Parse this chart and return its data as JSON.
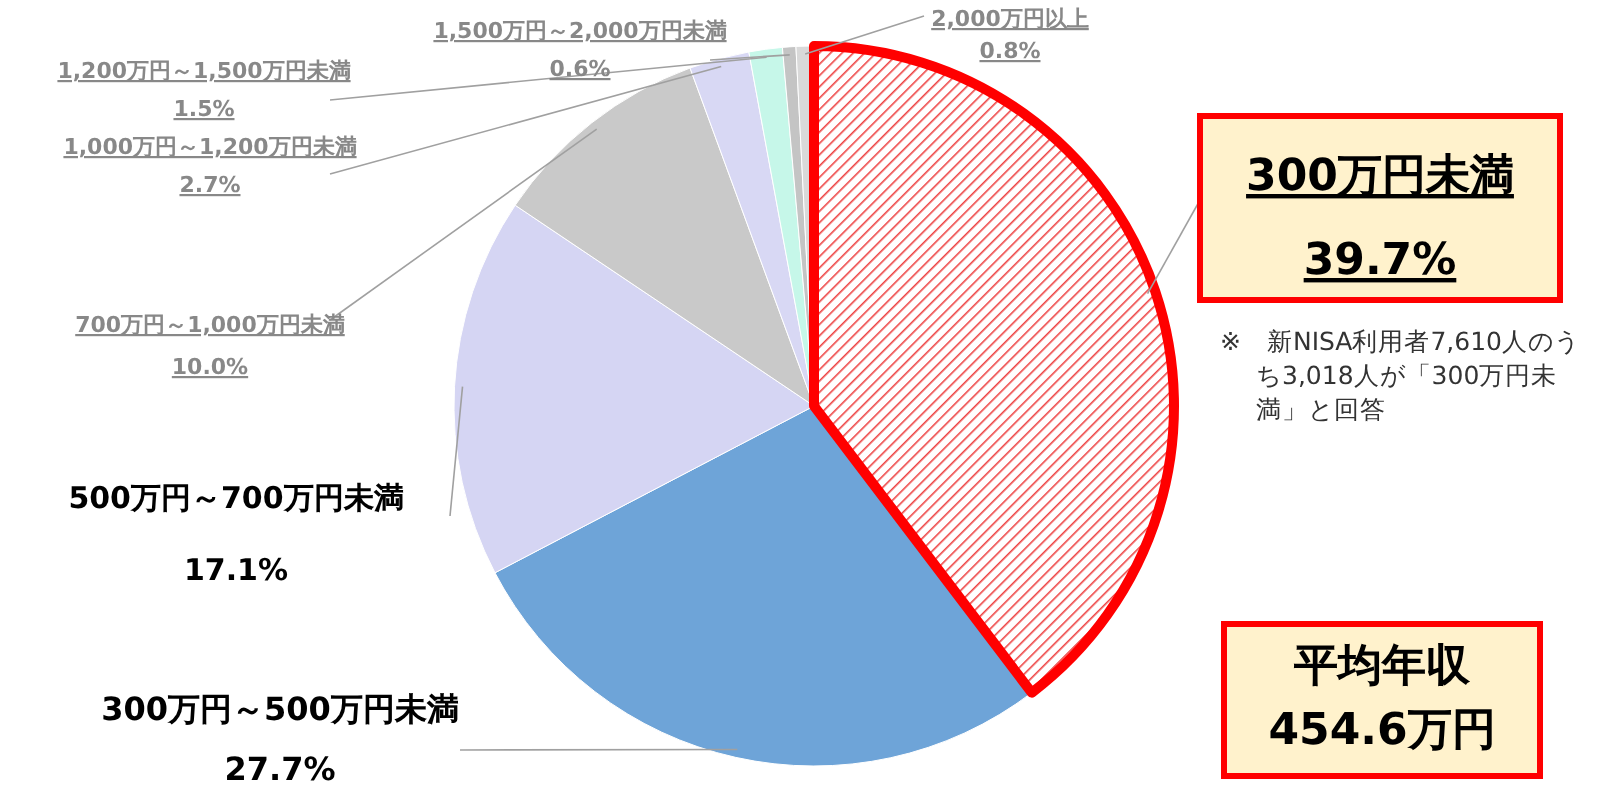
{
  "chart_data": {
    "type": "pie",
    "categories": [
      "300万円未満",
      "300万円～500万円未満",
      "500万円～700万円未満",
      "700万円～1,000万円未満",
      "1,000万円～1,200万円未満",
      "1,200万円～1,500万円未満",
      "1,500万円～2,000万円未満",
      "2,000万円以上"
    ],
    "values": [
      39.7,
      27.7,
      17.1,
      10.0,
      2.7,
      1.5,
      0.6,
      0.8
    ],
    "value_labels": [
      "39.7%",
      "27.7%",
      "17.1%",
      "10.0%",
      "2.7%",
      "1.5%",
      "0.6%",
      "0.8%"
    ],
    "colors": [
      "#ff0000",
      "#6ea4d8",
      "#d5d5f3",
      "#c9c9c9",
      "#d8d8f4",
      "#c6f7e9",
      "#c4c4c4",
      "#d9d9d9"
    ],
    "annotations": [
      "※　新NISA利用者7,610人のうち3,018人が「300万円未満」と回答",
      "平均年収 454.6万円"
    ]
  }
}
